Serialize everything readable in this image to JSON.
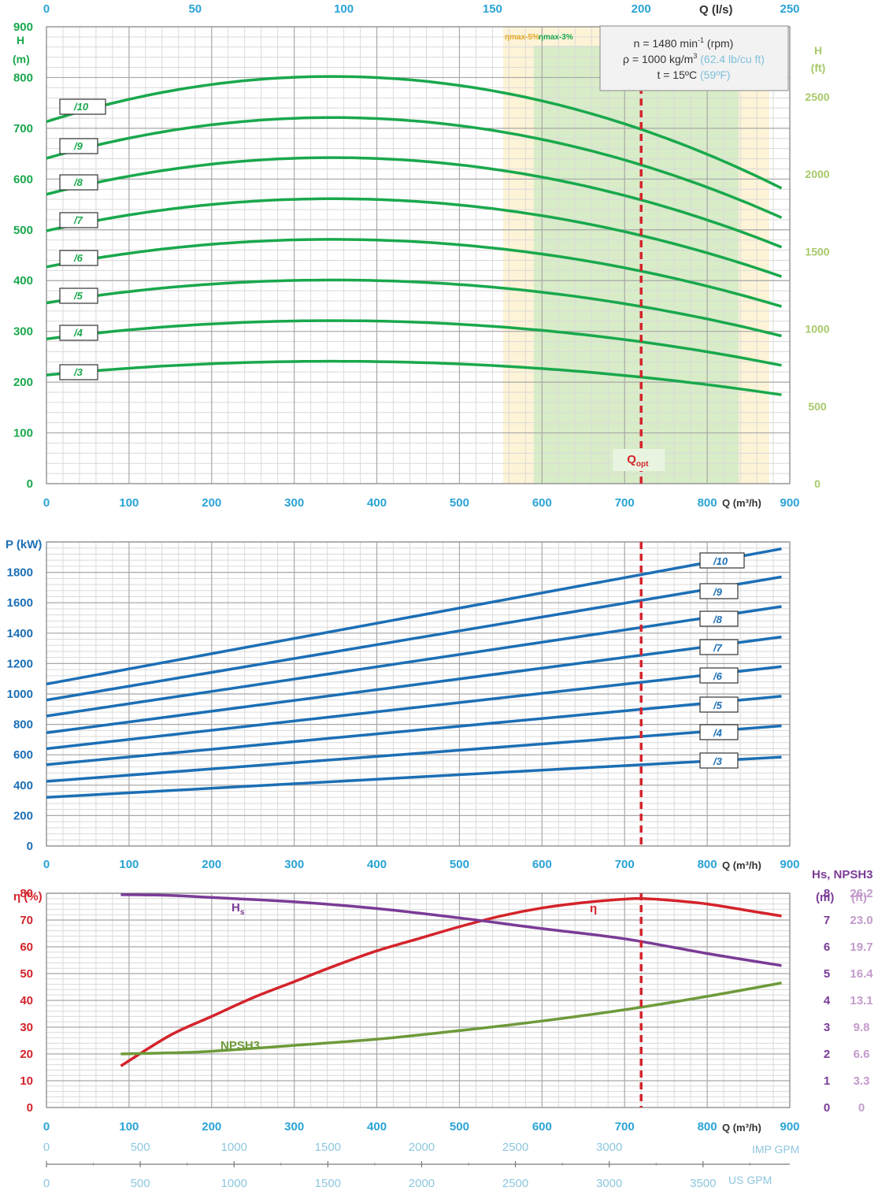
{
  "colors": {
    "green": "#19a84c",
    "blue": "#1c6fb5",
    "red": "#d4232b",
    "purple": "#7a3b96",
    "olive": "#6e9a3a",
    "cyan": "#2aa3d6",
    "lightgreen": "#a6c96a",
    "lightcyan": "#8dc7df",
    "lightpurple": "#c39bcc",
    "grid": "#a8a8a8",
    "gridMinor": "#dadada",
    "band5": "#fdf3d6",
    "band3": "#d8ecc8"
  },
  "info_box": {
    "line1": "n = 1480 min",
    "line1_sup": "-1",
    "line1_tail": " (rpm)",
    "line2": "ρ = 1000 kg/m",
    "line2_sup": "3",
    "line2_gray": " (62.4 lb/cu ft)",
    "line3": "t = 15ºC ",
    "line3_gray": "(59ºF)"
  },
  "chart_data": [
    {
      "type": "line",
      "x_unit_label": "Q (m³/h)",
      "top_axis_label": "Q (l/s)",
      "top_ticks": [
        "0",
        "50",
        "100",
        "150",
        "200",
        "250"
      ],
      "ylabel_left": [
        "H",
        "(m)"
      ],
      "ylabel_right": [
        "H",
        "(ft)"
      ],
      "xlim": [
        0,
        900
      ],
      "ylim": [
        0,
        900
      ],
      "x_ticks": [
        "0",
        "100",
        "200",
        "300",
        "400",
        "500",
        "600",
        "700",
        "800",
        "900"
      ],
      "y_ticks": [
        "0",
        "100",
        "200",
        "300",
        "400",
        "500",
        "600",
        "700",
        "800",
        "900"
      ],
      "y_right_ticks": [
        "0",
        "500",
        "1000",
        "1500",
        "2000",
        "2500"
      ],
      "band_labels": {
        "eta5": "ηmax-5%",
        "eta3": "ηmax-3%"
      },
      "eta_bands": {
        "eta5": [
          553,
          875
        ],
        "eta3": [
          590,
          838
        ]
      },
      "q_opt": {
        "x": 720,
        "label": "Qopt"
      },
      "series": [
        {
          "name": "/10",
          "shut_off": 713,
          "peak": 802,
          "end": 582
        },
        {
          "name": "/9",
          "shut_off": 641,
          "peak": 721,
          "end": 524
        },
        {
          "name": "/8",
          "shut_off": 570,
          "peak": 642,
          "end": 466
        },
        {
          "name": "/7",
          "shut_off": 498,
          "peak": 561,
          "end": 408
        },
        {
          "name": "/6",
          "shut_off": 427,
          "peak": 481,
          "end": 349
        },
        {
          "name": "/5",
          "shut_off": 356,
          "peak": 401,
          "end": 291
        },
        {
          "name": "/4",
          "shut_off": 285,
          "peak": 321,
          "end": 233
        },
        {
          "name": "/3",
          "shut_off": 214,
          "peak": 241,
          "end": 175
        }
      ]
    },
    {
      "type": "line",
      "ylabel": "P (kW)",
      "x_unit_label": "Q (m³/h)",
      "xlim": [
        0,
        900
      ],
      "ylim": [
        0,
        2000
      ],
      "x_ticks": [
        "0",
        "100",
        "200",
        "300",
        "400",
        "500",
        "600",
        "700",
        "800",
        "900"
      ],
      "y_ticks": [
        "0",
        "200",
        "400",
        "600",
        "800",
        "1000",
        "1200",
        "1400",
        "1600",
        "1800"
      ],
      "series": [
        {
          "name": "/10",
          "x": [
            0,
            890
          ],
          "y": [
            1065,
            1955
          ]
        },
        {
          "name": "/9",
          "x": [
            0,
            890
          ],
          "y": [
            960,
            1770
          ]
        },
        {
          "name": "/8",
          "x": [
            0,
            890
          ],
          "y": [
            855,
            1575
          ]
        },
        {
          "name": "/7",
          "x": [
            0,
            890
          ],
          "y": [
            745,
            1375
          ]
        },
        {
          "name": "/6",
          "x": [
            0,
            890
          ],
          "y": [
            640,
            1180
          ]
        },
        {
          "name": "/5",
          "x": [
            0,
            890
          ],
          "y": [
            535,
            985
          ]
        },
        {
          "name": "/4",
          "x": [
            0,
            890
          ],
          "y": [
            425,
            790
          ]
        },
        {
          "name": "/3",
          "x": [
            0,
            890
          ],
          "y": [
            320,
            585
          ]
        }
      ]
    },
    {
      "type": "line",
      "ylabel_left": "η (%)",
      "ylabel_right_title": "Hs, NPSH3",
      "ylabel_right_m": "(m)",
      "ylabel_right_ft": "(ft)",
      "x_unit_label": "Q (m³/h)",
      "xlim": [
        0,
        900
      ],
      "ylim": [
        0,
        80
      ],
      "x_ticks": [
        "0",
        "100",
        "200",
        "300",
        "400",
        "500",
        "600",
        "700",
        "800",
        "900"
      ],
      "y_ticks": [
        "0",
        "10",
        "20",
        "30",
        "40",
        "50",
        "60",
        "70",
        "80"
      ],
      "right_m_ticks": [
        "0",
        "1",
        "2",
        "3",
        "4",
        "5",
        "6",
        "7",
        "8"
      ],
      "right_ft_ticks": [
        "0",
        "3.3",
        "6.6",
        "9.8",
        "13.1",
        "16.4",
        "19.7",
        "23.0",
        "26.2"
      ],
      "imp_gpm": {
        "label": "IMP GPM",
        "ticks": [
          "0",
          "500",
          "1000",
          "1500",
          "2000",
          "2500",
          "3000"
        ]
      },
      "us_gpm": {
        "label": "US GPM",
        "ticks": [
          "0",
          "500",
          "1000",
          "1500",
          "2000",
          "2500",
          "3000",
          "3500"
        ]
      },
      "series": [
        {
          "name": "η",
          "x": [
            90,
            150,
            200,
            250,
            300,
            350,
            400,
            450,
            500,
            550,
            600,
            650,
            700,
            720,
            750,
            800,
            850,
            890
          ],
          "y": [
            15.5,
            27,
            34,
            41,
            47,
            53,
            58.5,
            63,
            67.5,
            71.5,
            74.5,
            76.5,
            77.8,
            78,
            77.5,
            76,
            73.5,
            71.5
          ]
        },
        {
          "name": "Hs",
          "x": [
            90,
            150,
            200,
            300,
            400,
            500,
            600,
            700,
            800,
            890
          ],
          "y": [
            79.5,
            79.2,
            78.4,
            76.8,
            74.3,
            70.8,
            66.8,
            63,
            57.5,
            53
          ]
        },
        {
          "name": "NPSH3",
          "x": [
            90,
            150,
            200,
            300,
            400,
            500,
            600,
            700,
            800,
            890
          ],
          "y": [
            20,
            20.4,
            21,
            23.2,
            25.5,
            28.7,
            32.3,
            36.5,
            41.5,
            46.5
          ]
        }
      ]
    }
  ]
}
